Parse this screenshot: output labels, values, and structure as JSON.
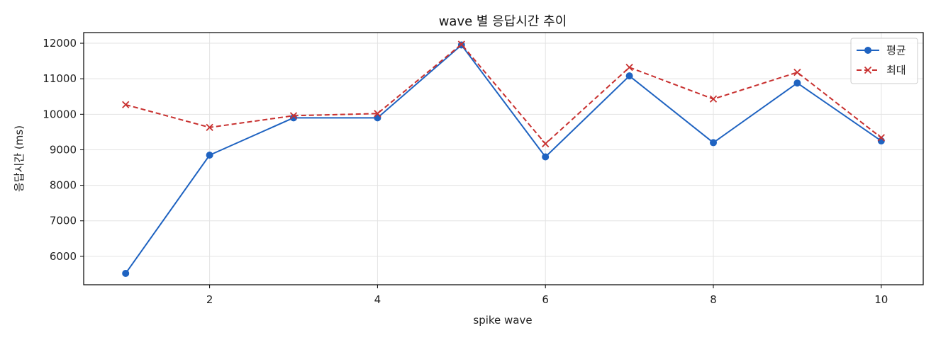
{
  "chart_data": {
    "type": "line",
    "title": "wave 별 응답시간 추이",
    "xlabel": "spike wave",
    "ylabel": "응답시간 (ms)",
    "x": [
      1,
      2,
      3,
      4,
      5,
      6,
      7,
      8,
      9,
      10
    ],
    "xlim": [
      0.5,
      10.5
    ],
    "ylim": [
      5200,
      12300
    ],
    "xticks": [
      2,
      4,
      6,
      8,
      10
    ],
    "yticks": [
      6000,
      7000,
      8000,
      9000,
      10000,
      11000,
      12000
    ],
    "grid": true,
    "legend_position": "top-right",
    "series": [
      {
        "name": "평균",
        "values": [
          5520,
          8850,
          9900,
          9900,
          11950,
          8800,
          11080,
          9200,
          10880,
          9250
        ],
        "color": "#1f63c1",
        "marker": "circle",
        "line_style": "solid"
      },
      {
        "name": "최대",
        "values": [
          10270,
          9630,
          9960,
          10020,
          11970,
          9170,
          11320,
          10430,
          11180,
          9340
        ],
        "color": "#c8302f",
        "marker": "x",
        "line_style": "dashed"
      }
    ]
  }
}
